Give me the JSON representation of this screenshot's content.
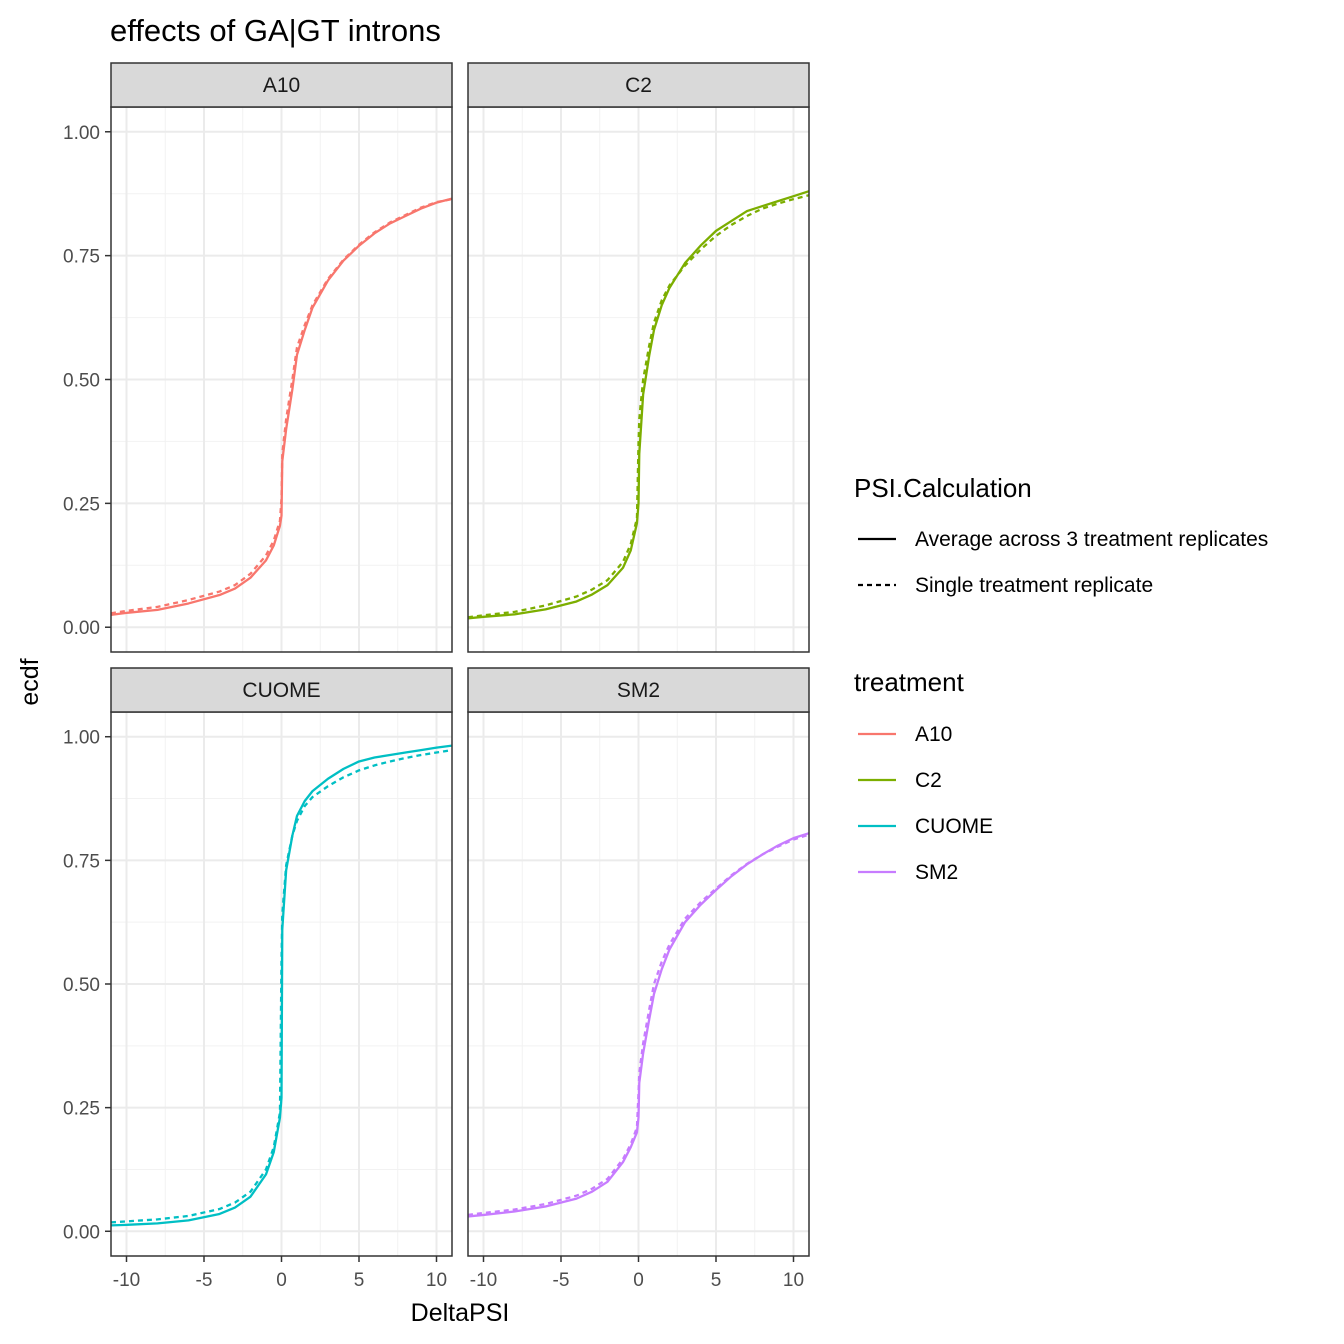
{
  "chart_data": {
    "type": "line",
    "title": "effects of GA|GT introns",
    "xlabel": "DeltaPSI",
    "ylabel": "ecdf",
    "xlim": [
      -11,
      11
    ],
    "ylim": [
      -0.05,
      1.05
    ],
    "x_ticks": [
      -10,
      -5,
      0,
      5,
      10
    ],
    "x_tick_labels": [
      "-10",
      "-5",
      "0",
      "5",
      "10"
    ],
    "y_ticks": [
      0,
      0.25,
      0.5,
      0.75,
      1.0
    ],
    "y_tick_labels": [
      "0.00",
      "0.25",
      "0.50",
      "0.75",
      "1.00"
    ],
    "grid": true,
    "legend_position": "right",
    "legends": [
      {
        "title": "PSI.Calculation",
        "entries": [
          {
            "label": "Average across 3 treatment replicates",
            "linetype": "solid"
          },
          {
            "label": "Single treatment replicate",
            "linetype": "dashed"
          }
        ]
      },
      {
        "title": "treatment",
        "entries": [
          {
            "label": "A10",
            "color": "#F8766D"
          },
          {
            "label": "C2",
            "color": "#7CAE00"
          },
          {
            "label": "CUOME",
            "color": "#00BFC4"
          },
          {
            "label": "SM2",
            "color": "#C77CFF"
          }
        ]
      }
    ],
    "panels": [
      {
        "label": "A10",
        "color": "#F8766D",
        "series": [
          {
            "name": "Average across 3 treatment replicates",
            "linetype": "solid",
            "x": [
              -11,
              -10,
              -8,
              -6,
              -4,
              -3,
              -2,
              -1,
              -0.5,
              -0.1,
              0,
              0.05,
              0.3,
              0.7,
              1,
              1.5,
              2,
              3,
              4,
              5,
              6,
              7,
              8,
              9,
              10,
              11
            ],
            "y": [
              0.025,
              0.029,
              0.035,
              0.048,
              0.065,
              0.078,
              0.1,
              0.135,
              0.165,
              0.205,
              0.225,
              0.335,
              0.4,
              0.48,
              0.55,
              0.6,
              0.645,
              0.7,
              0.74,
              0.77,
              0.795,
              0.815,
              0.83,
              0.845,
              0.857,
              0.865
            ]
          },
          {
            "name": "Single treatment replicate",
            "linetype": "dashed",
            "x": [
              -11,
              -10,
              -8,
              -6,
              -4,
              -3,
              -2,
              -1,
              -0.5,
              -0.1,
              0,
              0.05,
              0.3,
              0.7,
              1,
              1.5,
              2,
              3,
              4,
              5,
              6,
              7,
              8,
              9,
              10,
              11
            ],
            "y": [
              0.028,
              0.033,
              0.041,
              0.055,
              0.072,
              0.085,
              0.108,
              0.145,
              0.175,
              0.215,
              0.26,
              0.35,
              0.42,
              0.5,
              0.565,
              0.61,
              0.65,
              0.703,
              0.742,
              0.772,
              0.797,
              0.817,
              0.832,
              0.847,
              0.858,
              0.864
            ]
          }
        ]
      },
      {
        "label": "C2",
        "color": "#7CAE00",
        "series": [
          {
            "name": "Average across 3 treatment replicates",
            "linetype": "solid",
            "x": [
              -11,
              -10,
              -8,
              -6,
              -4,
              -3,
              -2,
              -1,
              -0.5,
              -0.1,
              0,
              0.05,
              0.3,
              0.7,
              1,
              1.5,
              2,
              3,
              4,
              5,
              6,
              7,
              8,
              9,
              10,
              11
            ],
            "y": [
              0.018,
              0.021,
              0.026,
              0.036,
              0.052,
              0.066,
              0.085,
              0.12,
              0.155,
              0.21,
              0.25,
              0.35,
              0.47,
              0.55,
              0.6,
              0.65,
              0.685,
              0.735,
              0.77,
              0.8,
              0.82,
              0.84,
              0.85,
              0.86,
              0.87,
              0.88
            ]
          },
          {
            "name": "Single treatment replicate",
            "linetype": "dashed",
            "x": [
              -11,
              -10,
              -8,
              -6,
              -4,
              -3,
              -2,
              -1,
              -0.5,
              -0.1,
              0,
              0.05,
              0.3,
              0.7,
              1,
              1.5,
              2,
              3,
              4,
              5,
              6,
              7,
              8,
              9,
              10,
              11
            ],
            "y": [
              0.02,
              0.024,
              0.031,
              0.044,
              0.062,
              0.076,
              0.095,
              0.132,
              0.168,
              0.22,
              0.37,
              0.42,
              0.5,
              0.57,
              0.615,
              0.66,
              0.69,
              0.73,
              0.762,
              0.79,
              0.812,
              0.83,
              0.845,
              0.855,
              0.864,
              0.872
            ]
          }
        ]
      },
      {
        "label": "CUOME",
        "color": "#00BFC4",
        "series": [
          {
            "name": "Average across 3 treatment replicates",
            "linetype": "solid",
            "x": [
              -11,
              -10,
              -8,
              -6,
              -4,
              -3,
              -2,
              -1,
              -0.5,
              -0.1,
              0,
              0.05,
              0.3,
              0.7,
              1,
              1.5,
              2,
              3,
              4,
              5,
              6,
              7,
              8,
              9,
              10,
              11
            ],
            "y": [
              0.012,
              0.013,
              0.016,
              0.022,
              0.035,
              0.048,
              0.07,
              0.115,
              0.16,
              0.23,
              0.27,
              0.61,
              0.73,
              0.8,
              0.84,
              0.87,
              0.89,
              0.915,
              0.935,
              0.95,
              0.958,
              0.963,
              0.968,
              0.973,
              0.978,
              0.982
            ]
          },
          {
            "name": "Single treatment replicate",
            "linetype": "dashed",
            "x": [
              -11,
              -10,
              -8,
              -6,
              -4,
              -3,
              -2,
              -1,
              -0.5,
              -0.1,
              0,
              0.05,
              0.3,
              0.7,
              1,
              1.5,
              2,
              3,
              4,
              5,
              6,
              7,
              8,
              9,
              10,
              11
            ],
            "y": [
              0.018,
              0.02,
              0.024,
              0.031,
              0.045,
              0.058,
              0.08,
              0.125,
              0.17,
              0.24,
              0.55,
              0.64,
              0.74,
              0.8,
              0.83,
              0.86,
              0.878,
              0.9,
              0.918,
              0.932,
              0.942,
              0.95,
              0.957,
              0.963,
              0.968,
              0.973
            ]
          }
        ]
      },
      {
        "label": "SM2",
        "color": "#C77CFF",
        "series": [
          {
            "name": "Average across 3 treatment replicates",
            "linetype": "solid",
            "x": [
              -11,
              -10,
              -8,
              -6,
              -4,
              -3,
              -2,
              -1,
              -0.5,
              -0.1,
              0,
              0.05,
              0.3,
              0.7,
              1,
              1.5,
              2,
              3,
              4,
              5,
              6,
              7,
              8,
              9,
              10,
              11
            ],
            "y": [
              0.03,
              0.033,
              0.04,
              0.05,
              0.066,
              0.08,
              0.1,
              0.14,
              0.17,
              0.2,
              0.23,
              0.3,
              0.36,
              0.43,
              0.48,
              0.53,
              0.57,
              0.625,
              0.66,
              0.69,
              0.718,
              0.742,
              0.762,
              0.78,
              0.795,
              0.805
            ]
          },
          {
            "name": "Single treatment replicate",
            "linetype": "dashed",
            "x": [
              -11,
              -10,
              -8,
              -6,
              -4,
              -3,
              -2,
              -1,
              -0.5,
              -0.1,
              0,
              0.05,
              0.3,
              0.7,
              1,
              1.5,
              2,
              3,
              4,
              5,
              6,
              7,
              8,
              9,
              10,
              11
            ],
            "y": [
              0.033,
              0.037,
              0.044,
              0.055,
              0.072,
              0.086,
              0.106,
              0.146,
              0.176,
              0.21,
              0.28,
              0.32,
              0.38,
              0.45,
              0.5,
              0.545,
              0.58,
              0.632,
              0.665,
              0.693,
              0.72,
              0.743,
              0.762,
              0.778,
              0.792,
              0.802
            ]
          }
        ]
      }
    ]
  }
}
